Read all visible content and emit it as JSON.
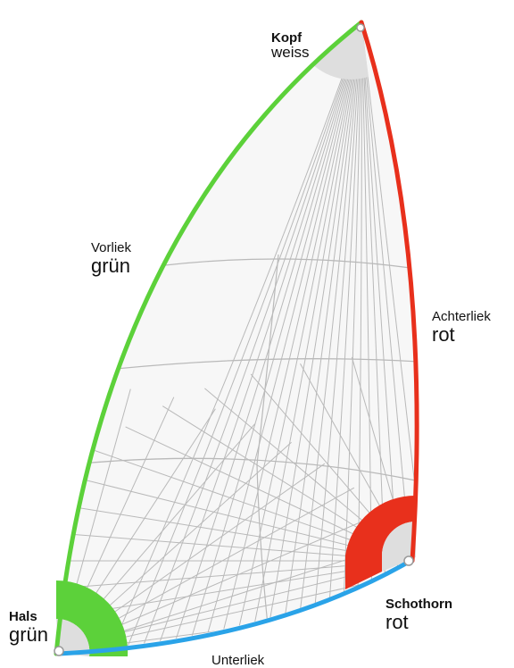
{
  "labels": {
    "kopf": {
      "title": "Kopf",
      "color_name": "weiss"
    },
    "vorliek": {
      "title": "Vorliek",
      "color_name": "grün"
    },
    "achterliek": {
      "title": "Achterliek",
      "color_name": "rot"
    },
    "schothorn": {
      "title": "Schothorn",
      "color_name": "rot"
    },
    "hals": {
      "title": "Hals",
      "color_name": "grün"
    },
    "unterliek": {
      "title": "Unterliek"
    }
  },
  "colors": {
    "green": "#5cd13a",
    "red": "#e8301c",
    "blue": "#2aa3e8",
    "white_patch": "#dedede",
    "panel_lines": "#b9b9b9",
    "sail_fill": "#f7f7f7"
  }
}
